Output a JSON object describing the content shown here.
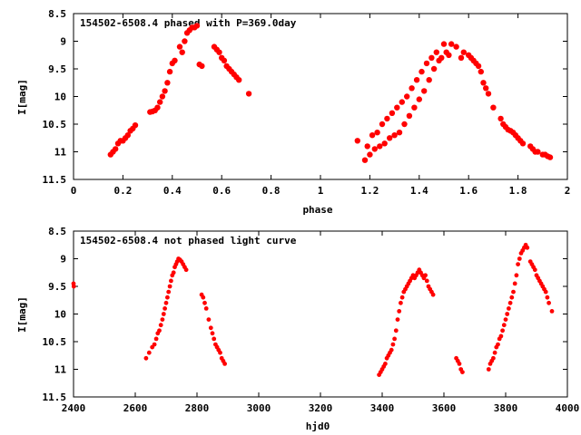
{
  "chart_data": [
    {
      "type": "scatter",
      "title": "154502-6508.4 phased with P=369.0day",
      "xlabel": "phase",
      "ylabel": "I[mag]",
      "xlim": [
        0,
        2
      ],
      "ylim": [
        11.5,
        8.5
      ],
      "y_inverted": true,
      "xticks": [
        "0",
        "0.2",
        "0.4",
        "0.6",
        "0.8",
        "1",
        "1.2",
        "1.4",
        "1.6",
        "1.8",
        "2"
      ],
      "yticks": [
        "8.5",
        "9",
        "9.5",
        "10",
        "10.5",
        "11",
        "11.5"
      ],
      "grid": false,
      "marker_color": "#ff0000",
      "series": [
        {
          "x": [
            0.15,
            0.16,
            0.17,
            0.18,
            0.19,
            0.2,
            0.21,
            0.22,
            0.23,
            0.24,
            0.25,
            0.31,
            0.32,
            0.33,
            0.34,
            0.35,
            0.36,
            0.37,
            0.38,
            0.39,
            0.4,
            0.41,
            0.43,
            0.44,
            0.45,
            0.46,
            0.47,
            0.48,
            0.49,
            0.5,
            0.51,
            0.52,
            0.57,
            0.58,
            0.59,
            0.6,
            0.61,
            0.62,
            0.63,
            0.64,
            0.65,
            0.66,
            0.67,
            0.71,
            1.15,
            1.18,
            1.19,
            1.2,
            1.21,
            1.22,
            1.23,
            1.24,
            1.25,
            1.26,
            1.27,
            1.28,
            1.29,
            1.3,
            1.31,
            1.32,
            1.33,
            1.34,
            1.35,
            1.36,
            1.37,
            1.38,
            1.39,
            1.4,
            1.41,
            1.42,
            1.43,
            1.44,
            1.45,
            1.46,
            1.47,
            1.48,
            1.49,
            1.5,
            1.51,
            1.52,
            1.53,
            1.55,
            1.57,
            1.58,
            1.6,
            1.61,
            1.62,
            1.63,
            1.64,
            1.65,
            1.66,
            1.67,
            1.68,
            1.7,
            1.73,
            1.74,
            1.75,
            1.76,
            1.77,
            1.78,
            1.79,
            1.8,
            1.81,
            1.82,
            1.85,
            1.86,
            1.87,
            1.88,
            1.9,
            1.91,
            1.92,
            1.93
          ],
          "y": [
            11.05,
            11.0,
            10.95,
            10.85,
            10.8,
            10.8,
            10.75,
            10.7,
            10.62,
            10.58,
            10.52,
            10.28,
            10.27,
            10.25,
            10.2,
            10.1,
            10.0,
            9.9,
            9.75,
            9.55,
            9.4,
            9.35,
            9.1,
            9.2,
            9.0,
            8.85,
            8.8,
            8.75,
            8.75,
            8.72,
            9.42,
            9.45,
            9.1,
            9.15,
            9.2,
            9.3,
            9.35,
            9.45,
            9.5,
            9.55,
            9.6,
            9.65,
            9.7,
            9.95,
            10.8,
            11.15,
            10.9,
            11.05,
            10.7,
            10.95,
            10.65,
            10.9,
            10.5,
            10.85,
            10.4,
            10.75,
            10.3,
            10.7,
            10.2,
            10.65,
            10.1,
            10.5,
            10.0,
            10.35,
            9.85,
            10.2,
            9.7,
            10.05,
            9.55,
            9.9,
            9.4,
            9.7,
            9.3,
            9.5,
            9.2,
            9.35,
            9.3,
            9.05,
            9.2,
            9.25,
            9.05,
            9.1,
            9.3,
            9.2,
            9.25,
            9.3,
            9.35,
            9.4,
            9.45,
            9.55,
            9.75,
            9.85,
            9.95,
            10.2,
            10.4,
            10.5,
            10.55,
            10.6,
            10.62,
            10.65,
            10.7,
            10.75,
            10.8,
            10.85,
            10.9,
            10.95,
            11.0,
            11.0,
            11.05,
            11.05,
            11.08,
            11.1
          ]
        }
      ]
    },
    {
      "type": "scatter",
      "title": "154502-6508.4 not phased light curve",
      "xlabel": "hjd0",
      "ylabel": "I[mag]",
      "xlim": [
        2400,
        4000
      ],
      "ylim": [
        11.5,
        8.5
      ],
      "y_inverted": true,
      "xticks": [
        "2400",
        "2600",
        "2800",
        "3000",
        "3200",
        "3400",
        "3600",
        "3800",
        "4000"
      ],
      "yticks": [
        "8.5",
        "9",
        "9.5",
        "10",
        "10.5",
        "11",
        "11.5"
      ],
      "grid": false,
      "marker_color": "#ff0000",
      "series": [
        {
          "x": [
            2400,
            2401,
            2635,
            2645,
            2655,
            2662,
            2668,
            2673,
            2678,
            2683,
            2688,
            2692,
            2696,
            2700,
            2704,
            2708,
            2712,
            2716,
            2720,
            2724,
            2728,
            2732,
            2736,
            2740,
            2745,
            2750,
            2755,
            2760,
            2765,
            2815,
            2820,
            2825,
            2830,
            2838,
            2845,
            2850,
            2855,
            2860,
            2865,
            2870,
            2875,
            2880,
            2885,
            2890,
            3390,
            3395,
            3400,
            3405,
            3410,
            3415,
            3420,
            3425,
            3430,
            3435,
            3440,
            3445,
            3450,
            3455,
            3460,
            3465,
            3470,
            3475,
            3480,
            3485,
            3490,
            3495,
            3500,
            3505,
            3510,
            3515,
            3520,
            3525,
            3530,
            3535,
            3540,
            3545,
            3550,
            3555,
            3560,
            3565,
            3640,
            3645,
            3650,
            3655,
            3660,
            3745,
            3750,
            3755,
            3760,
            3765,
            3770,
            3775,
            3780,
            3785,
            3790,
            3795,
            3800,
            3805,
            3810,
            3815,
            3820,
            3825,
            3830,
            3835,
            3840,
            3845,
            3850,
            3855,
            3860,
            3865,
            3870,
            3880,
            3885,
            3890,
            3895,
            3900,
            3905,
            3910,
            3915,
            3920,
            3925,
            3930,
            3935,
            3940,
            3950
          ],
          "y": [
            9.45,
            9.5,
            10.8,
            10.7,
            10.6,
            10.55,
            10.45,
            10.35,
            10.3,
            10.2,
            10.1,
            10.0,
            9.9,
            9.8,
            9.7,
            9.6,
            9.5,
            9.4,
            9.3,
            9.25,
            9.15,
            9.1,
            9.05,
            9.0,
            9.02,
            9.05,
            9.1,
            9.15,
            9.2,
            9.65,
            9.7,
            9.8,
            9.9,
            10.1,
            10.25,
            10.35,
            10.45,
            10.55,
            10.6,
            10.65,
            10.7,
            10.8,
            10.85,
            10.9,
            11.1,
            11.05,
            11.0,
            10.95,
            10.9,
            10.8,
            10.75,
            10.7,
            10.65,
            10.55,
            10.45,
            10.3,
            10.1,
            9.95,
            9.8,
            9.7,
            9.6,
            9.55,
            9.5,
            9.45,
            9.4,
            9.35,
            9.3,
            9.35,
            9.3,
            9.25,
            9.2,
            9.25,
            9.3,
            9.35,
            9.3,
            9.4,
            9.5,
            9.55,
            9.6,
            9.65,
            10.8,
            10.85,
            10.9,
            11.0,
            11.05,
            11.0,
            10.9,
            10.85,
            10.8,
            10.7,
            10.6,
            10.55,
            10.45,
            10.4,
            10.3,
            10.2,
            10.1,
            10.0,
            9.9,
            9.8,
            9.7,
            9.6,
            9.45,
            9.3,
            9.1,
            9.0,
            8.9,
            8.85,
            8.8,
            8.75,
            8.8,
            9.05,
            9.1,
            9.15,
            9.2,
            9.3,
            9.35,
            9.4,
            9.45,
            9.5,
            9.55,
            9.6,
            9.7,
            9.8,
            9.95
          ]
        }
      ]
    }
  ]
}
